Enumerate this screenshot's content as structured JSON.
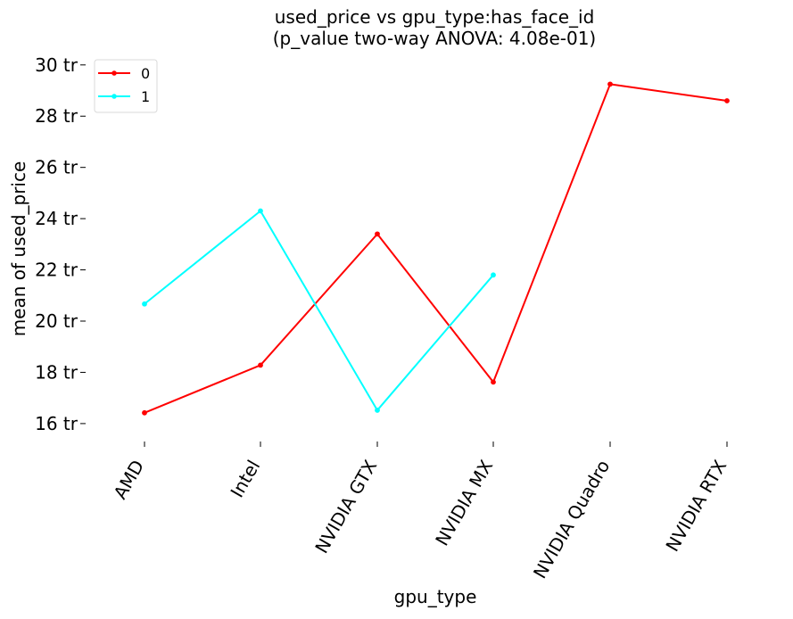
{
  "chart_data": {
    "type": "line",
    "title_lines": [
      "used_price vs gpu_type:has_face_id",
      "(p_value two-way ANOVA: 4.08e-01)"
    ],
    "xlabel": "gpu_type",
    "ylabel": "mean of used_price",
    "categories": [
      "AMD",
      "Intel",
      "NVIDIA GTX",
      "NVIDIA MX",
      "NVIDIA Quadro",
      "NVIDIA RTX"
    ],
    "yticks": [
      16,
      18,
      20,
      22,
      24,
      26,
      28,
      30
    ],
    "ytick_labels": [
      "16 tr",
      "18 tr",
      "20 tr",
      "22 tr",
      "24 tr",
      "26 tr",
      "28 tr",
      "30 tr"
    ],
    "ylim": [
      15.3,
      30.55
    ],
    "y_unit": "tr",
    "grid": false,
    "legend": {
      "placement": "top-left",
      "entries": [
        "0",
        "1"
      ]
    },
    "series": [
      {
        "name": "0",
        "color": "#ff0000",
        "values": [
          16.42,
          18.28,
          23.4,
          17.62,
          29.25,
          28.6
        ]
      },
      {
        "name": "1",
        "color": "#00ffff",
        "values": [
          20.67,
          24.3,
          16.52,
          21.8,
          null,
          null
        ]
      }
    ]
  }
}
